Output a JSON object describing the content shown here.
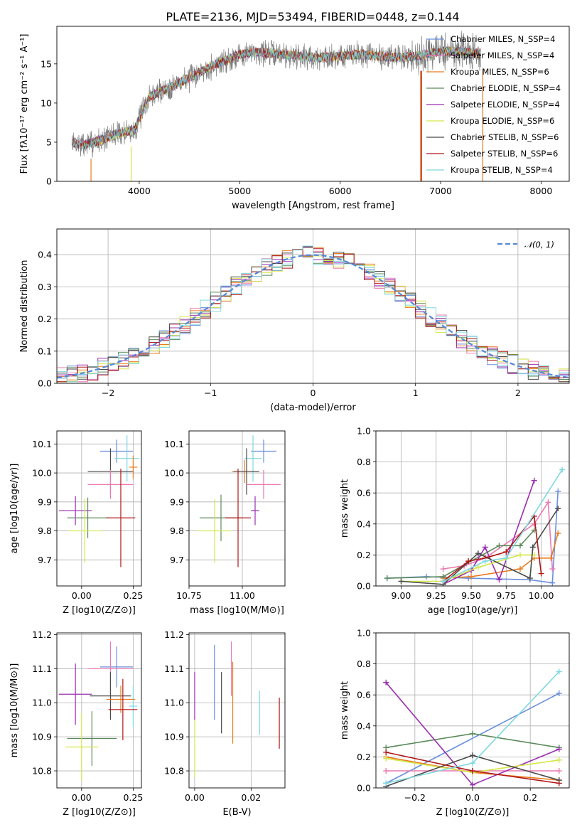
{
  "colors": {
    "Chabrier MILES": "#6a8fdd",
    "Salpeter MILES": "#ea7ab0",
    "Kroupa MILES": "#ea7b1e",
    "Chabrier ELODIE": "#5b8a5b",
    "Salpeter ELODIE": "#9a2fb0",
    "Kroupa ELODIE": "#d5e64a",
    "Chabrier STELIB": "#4a4a4a",
    "Salpeter STELIB": "#b01818",
    "Kroupa STELIB": "#7fd8df",
    "normal_curve": "#5588d8",
    "grid": "#b0b0b0"
  },
  "chart_data": [
    {
      "id": "spectrum",
      "type": "line",
      "title": "PLATE=2136, MJD=53494, FIBERID=0448, z=0.144",
      "xlabel": "wavelength [Angstrom, rest frame]",
      "ylabel": "Flux [fλ10⁻¹⁷ erg cm⁻² s⁻¹ A⁻¹]",
      "xlim": [
        3180,
        8280
      ],
      "ylim": [
        0,
        19.8
      ],
      "xticks": [
        "4000",
        "5000",
        "6000",
        "7000",
        "8000"
      ],
      "yticks": [
        "0",
        "5",
        "10",
        "15"
      ],
      "grid": false,
      "legend_position": "top-right",
      "legend": [
        "Chabrier MILES, N_SSP=4",
        "Salpeter MILES, N_SSP=4",
        "Kroupa MILES, N_SSP=6",
        "Chabrier ELODIE, N_SSP=4",
        "Salpeter ELODIE, N_SSP=4",
        "Kroupa ELODIE, N_SSP=6",
        "Chabrier STELIB, N_SSP=6",
        "Salpeter STELIB, N_SSP=6",
        "Kroupa STELIB, N_SSP=4"
      ],
      "data_continuum": {
        "x": [
          3330,
          3450,
          3600,
          3800,
          3950,
          4100,
          4300,
          4500,
          4700,
          4850,
          5000,
          5200,
          5400,
          5600,
          5800,
          6000,
          6200,
          6400,
          6600,
          6800,
          7000,
          7200,
          7400
        ],
        "y": [
          5.0,
          4.6,
          5.2,
          6.2,
          6.5,
          10.8,
          12.0,
          13.2,
          14.6,
          15.4,
          16.2,
          16.5,
          16.2,
          16.0,
          15.8,
          16.0,
          16.2,
          16.0,
          15.8,
          16.1,
          16.6,
          16.6,
          16.4
        ]
      }
    },
    {
      "id": "residuals",
      "type": "line",
      "xlabel": "(data-model)/error",
      "ylabel": "Normed distribution",
      "xlim": [
        -2.5,
        2.5
      ],
      "ylim": [
        0,
        0.48
      ],
      "xticks": [
        "−2",
        "−1",
        "0",
        "1",
        "2"
      ],
      "yticks": [
        "0.0",
        "0.1",
        "0.2",
        "0.3",
        "0.4"
      ],
      "grid": true,
      "legend_position": "top-right",
      "legend": [
        "𝒩(0, 1)"
      ],
      "histogram_step": "stepped histograms, one per model, bin width 0.1",
      "normal_curve": {
        "mean": 0,
        "sigma": 1
      }
    },
    {
      "id": "age-vs-Z",
      "type": "scatter",
      "xlabel": "Z [log10(Z/Z⊙)]",
      "ylabel": "age  [log10(age/yr)]",
      "xlim": [
        -0.12,
        0.29
      ],
      "ylim": [
        9.61,
        10.145
      ],
      "xticks": [
        "0.00",
        "0.25"
      ],
      "yticks": [
        "9.7",
        "9.8",
        "9.9",
        "10.0",
        "10.1"
      ],
      "grid": true,
      "points": [
        {
          "model": "Chabrier MILES",
          "x": 0.17,
          "xerr": 0.08,
          "y": 10.075,
          "yerr": 0.04
        },
        {
          "model": "Kroupa STELIB",
          "x": 0.22,
          "xerr": 0.06,
          "y": 10.05,
          "yerr": 0.08
        },
        {
          "model": "Kroupa MILES",
          "x": 0.25,
          "xerr": 0.02,
          "y": 10.02,
          "yerr": 0.04
        },
        {
          "model": "Chabrier STELIB",
          "x": 0.14,
          "xerr": 0.11,
          "y": 10.005,
          "yerr": 0.08
        },
        {
          "model": "Salpeter MILES",
          "x": 0.14,
          "xerr": 0.11,
          "y": 9.96,
          "yerr": 0.05
        },
        {
          "model": "Salpeter ELODIE",
          "x": -0.03,
          "xerr": 0.08,
          "y": 9.87,
          "yerr": 0.05
        },
        {
          "model": "Chabrier ELODIE",
          "x": 0.03,
          "xerr": 0.1,
          "y": 9.845,
          "yerr": 0.07
        },
        {
          "model": "Salpeter STELIB",
          "x": 0.19,
          "xerr": 0.07,
          "y": 9.845,
          "yerr": 0.17
        },
        {
          "model": "Kroupa ELODIE",
          "x": 0.015,
          "xerr": 0.08,
          "y": 9.8,
          "yerr": 0.11
        }
      ]
    },
    {
      "id": "age-vs-mass",
      "type": "scatter",
      "xlabel": "mass [log10(M/M⊙)]",
      "ylabel": "",
      "xlim": [
        10.75,
        11.2
      ],
      "ylim": [
        9.61,
        10.145
      ],
      "xticks": [
        "10.75",
        "11.00"
      ],
      "yticks": [
        "9.7",
        "9.8",
        "9.9",
        "10.0",
        "10.1"
      ],
      "grid": true,
      "points": [
        {
          "model": "Chabrier MILES",
          "x": 11.1,
          "xerr": 0.06,
          "y": 10.075,
          "yerr": 0.04
        },
        {
          "model": "Kroupa STELIB",
          "x": 11.05,
          "xerr": 0.04,
          "y": 10.05,
          "yerr": 0.08
        },
        {
          "model": "Kroupa MILES",
          "x": 11.01,
          "xerr": 0.06,
          "y": 10.005,
          "yerr": 0.04
        },
        {
          "model": "Chabrier STELIB",
          "x": 11.02,
          "xerr": 0.06,
          "y": 10.005,
          "yerr": 0.08
        },
        {
          "model": "Salpeter MILES",
          "x": 11.1,
          "xerr": 0.08,
          "y": 9.96,
          "yerr": 0.05
        },
        {
          "model": "Salpeter ELODIE",
          "x": 11.06,
          "xerr": 0.02,
          "y": 9.87,
          "yerr": 0.05
        },
        {
          "model": "Chabrier ELODIE",
          "x": 10.9,
          "xerr": 0.1,
          "y": 9.845,
          "yerr": 0.08
        },
        {
          "model": "Salpeter STELIB",
          "x": 10.98,
          "xerr": 0.06,
          "y": 9.845,
          "yerr": 0.17
        },
        {
          "model": "Kroupa ELODIE",
          "x": 10.87,
          "xerr": 0.08,
          "y": 9.8,
          "yerr": 0.11
        }
      ]
    },
    {
      "id": "weight-vs-age",
      "type": "line",
      "xlabel": "age  [log10(age/yr)]",
      "ylabel": "mass weight",
      "xlim": [
        8.82,
        10.2
      ],
      "ylim": [
        0,
        1.0
      ],
      "xticks": [
        "9.00",
        "9.25",
        "9.50",
        "9.75",
        "10.00"
      ],
      "yticks": [
        "0.0",
        "0.2",
        "0.4",
        "0.6",
        "0.8",
        "1.0"
      ],
      "grid": true,
      "series": [
        {
          "name": "Chabrier MILES",
          "x": [
            8.9,
            9.18,
            9.48,
            9.92,
            10.08,
            10.12
          ],
          "y": [
            0.05,
            0.06,
            0.05,
            0.04,
            0.02,
            0.61
          ]
        },
        {
          "name": "Salpeter MILES",
          "x": [
            9.3,
            9.45,
            9.6,
            9.95,
            10.05,
            10.08
          ],
          "y": [
            0.11,
            0.13,
            0.18,
            0.4,
            0.54,
            0.11
          ]
        },
        {
          "name": "Kroupa MILES",
          "x": [
            9.3,
            9.5,
            9.85,
            9.95,
            10.07,
            10.12
          ],
          "y": [
            0.05,
            0.06,
            0.11,
            0.18,
            0.18,
            0.34
          ]
        },
        {
          "name": "Chabrier ELODIE",
          "x": [
            8.9,
            9.3,
            9.7,
            9.85,
            9.95
          ],
          "y": [
            0.05,
            0.06,
            0.26,
            0.26,
            0.36
          ]
        },
        {
          "name": "Salpeter ELODIE",
          "x": [
            9.3,
            9.5,
            9.6,
            9.7,
            9.95
          ],
          "y": [
            0.01,
            0.1,
            0.25,
            0.04,
            0.68
          ]
        },
        {
          "name": "Kroupa ELODIE",
          "x": [
            9.0,
            9.3,
            9.55,
            9.85,
            9.95
          ],
          "y": [
            0.03,
            0.03,
            0.12,
            0.2,
            0.2
          ]
        },
        {
          "name": "Chabrier STELIB",
          "x": [
            9.0,
            9.3,
            9.55,
            9.92,
            9.94,
            10.12
          ],
          "y": [
            0.03,
            0.01,
            0.21,
            0.05,
            0.25,
            0.5
          ]
        },
        {
          "name": "Salpeter STELIB",
          "x": [
            9.3,
            9.48,
            9.6,
            9.75,
            9.95,
            10.0
          ],
          "y": [
            0.03,
            0.16,
            0.18,
            0.22,
            0.45,
            0.08
          ]
        },
        {
          "name": "Kroupa STELIB",
          "x": [
            9.3,
            9.6,
            9.75,
            10.15
          ],
          "y": [
            0.03,
            0.16,
            0.18,
            0.75
          ]
        }
      ]
    },
    {
      "id": "mass-vs-Z",
      "type": "scatter",
      "xlabel": "Z [log10(Z/Z⊙)]",
      "ylabel": "mass [log10(M/M⊙)]",
      "xlim": [
        -0.12,
        0.29
      ],
      "ylim": [
        10.75,
        11.205
      ],
      "xticks": [
        "0.00",
        "0.25"
      ],
      "yticks": [
        "10.8",
        "10.9",
        "11.0",
        "11.1",
        "11.2"
      ],
      "grid": true,
      "points": [
        {
          "model": "Chabrier MILES",
          "x": 0.17,
          "xerr": 0.08,
          "y": 11.105,
          "yerr": 0.06
        },
        {
          "model": "Salpeter MILES",
          "x": 0.14,
          "xerr": 0.11,
          "y": 11.1,
          "yerr": 0.08
        },
        {
          "model": "Kroupa STELIB",
          "x": 0.25,
          "xerr": 0.02,
          "y": 10.99,
          "yerr": 0.06
        },
        {
          "model": "Salpeter ELODIE",
          "x": -0.03,
          "xerr": 0.08,
          "y": 11.025,
          "yerr": 0.09
        },
        {
          "model": "Chabrier STELIB",
          "x": 0.14,
          "xerr": 0.1,
          "y": 11.02,
          "yerr": 0.07
        },
        {
          "model": "Kroupa MILES",
          "x": 0.19,
          "xerr": 0.07,
          "y": 11.01,
          "yerr": 0.04
        },
        {
          "model": "Salpeter STELIB",
          "x": 0.2,
          "xerr": 0.07,
          "y": 10.98,
          "yerr": 0.09
        },
        {
          "model": "Chabrier ELODIE",
          "x": 0.05,
          "xerr": 0.12,
          "y": 10.895,
          "yerr": 0.08
        },
        {
          "model": "Kroupa ELODIE",
          "x": 0.0,
          "xerr": 0.08,
          "y": 10.87,
          "yerr": 0.1
        }
      ]
    },
    {
      "id": "mass-vs-ebv",
      "type": "scatter",
      "xlabel": "E(B-V)",
      "ylabel": "",
      "xlim": [
        -0.002,
        0.032
      ],
      "ylim": [
        10.75,
        11.205
      ],
      "xticks": [
        "0.00",
        "0.02"
      ],
      "yticks": [
        "10.8",
        "10.9",
        "11.0",
        "11.1",
        "11.2"
      ],
      "grid": true,
      "points": [
        {
          "model": "Kroupa ELODIE",
          "x": 0.0,
          "y": 10.87,
          "yerr": 0.09
        },
        {
          "model": "Salpeter ELODIE",
          "x": 0.0,
          "y": 11.02,
          "yerr": 0.07
        },
        {
          "model": "Chabrier MILES",
          "x": 0.007,
          "y": 11.06,
          "yerr": 0.11
        },
        {
          "model": "Chabrier STELIB",
          "x": 0.0095,
          "y": 11.0,
          "yerr": 0.09
        },
        {
          "model": "Salpeter MILES",
          "x": 0.013,
          "y": 11.1,
          "yerr": 0.08
        },
        {
          "model": "Kroupa MILES",
          "x": 0.0135,
          "y": 11.0,
          "yerr": 0.12
        },
        {
          "model": "Kroupa STELIB",
          "x": 0.023,
          "y": 10.97,
          "yerr": 0.065
        },
        {
          "model": "Salpeter STELIB",
          "x": 0.03,
          "y": 10.94,
          "yerr": 0.075
        }
      ]
    },
    {
      "id": "weight-vs-Z",
      "type": "line",
      "xlabel": "Z [log10(Z/Z⊙)]",
      "ylabel": "mass weight",
      "xlim": [
        -0.335,
        0.335
      ],
      "ylim": [
        0,
        1.0
      ],
      "xticks": [
        "−0.2",
        "0.0",
        "0.2"
      ],
      "yticks": [
        "0.0",
        "0.2",
        "0.4",
        "0.6",
        "0.8",
        "1.0"
      ],
      "grid": true,
      "series": [
        {
          "name": "Chabrier MILES",
          "x": [
            -0.3,
            0.3
          ],
          "y": [
            0.03,
            0.61
          ]
        },
        {
          "name": "Salpeter MILES",
          "x": [
            -0.3,
            0.0,
            0.3
          ],
          "y": [
            0.11,
            0.11,
            0.11
          ]
        },
        {
          "name": "Kroupa MILES",
          "x": [
            -0.3,
            0.0,
            0.3
          ],
          "y": [
            0.2,
            0.1,
            0.05
          ]
        },
        {
          "name": "Chabrier ELODIE",
          "x": [
            -0.3,
            0.0,
            0.3
          ],
          "y": [
            0.26,
            0.35,
            0.26
          ]
        },
        {
          "name": "Salpeter ELODIE",
          "x": [
            -0.3,
            0.0,
            0.3
          ],
          "y": [
            0.68,
            0.02,
            0.25
          ]
        },
        {
          "name": "Kroupa ELODIE",
          "x": [
            -0.3,
            0.0,
            0.3
          ],
          "y": [
            0.19,
            0.1,
            0.18
          ]
        },
        {
          "name": "Chabrier STELIB",
          "x": [
            -0.3,
            0.0,
            0.3
          ],
          "y": [
            0.01,
            0.21,
            0.05
          ]
        },
        {
          "name": "Salpeter STELIB",
          "x": [
            -0.3,
            0.0,
            0.3
          ],
          "y": [
            0.23,
            0.11,
            0.03
          ]
        },
        {
          "name": "Kroupa STELIB",
          "x": [
            -0.3,
            0.0,
            0.3
          ],
          "y": [
            0.03,
            0.16,
            0.75
          ]
        }
      ]
    }
  ]
}
